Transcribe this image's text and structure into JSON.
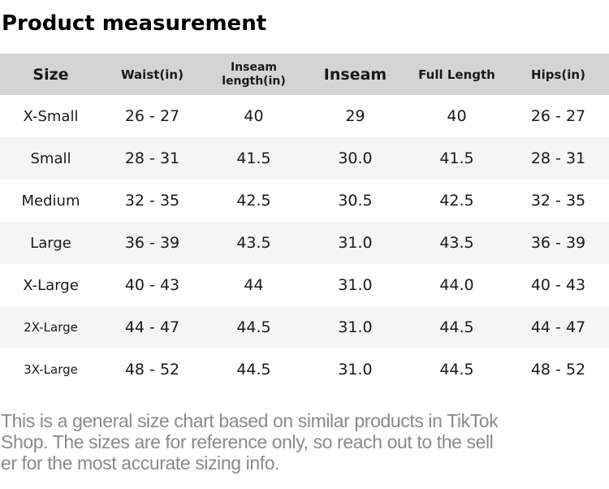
{
  "page": {
    "title": "Product measurement"
  },
  "table": {
    "columns": [
      {
        "label": "Size",
        "emphasis": "large"
      },
      {
        "label": "Waist(in)",
        "emphasis": "small"
      },
      {
        "label": "Inseam\nlength(in)",
        "emphasis": "twoline"
      },
      {
        "label": "Inseam",
        "emphasis": "large"
      },
      {
        "label": "Full Length",
        "emphasis": "small"
      },
      {
        "label": "Hips(in)",
        "emphasis": "small"
      }
    ],
    "rows": [
      {
        "size": "X-Small",
        "small_label": false,
        "values": [
          "26 - 27",
          "40",
          "29",
          "40",
          "26 - 27"
        ]
      },
      {
        "size": "Small",
        "small_label": false,
        "values": [
          "28 - 31",
          "41.5",
          "30.0",
          "41.5",
          "28 - 31"
        ]
      },
      {
        "size": "Medium",
        "small_label": false,
        "values": [
          "32 - 35",
          "42.5",
          "30.5",
          "42.5",
          "32 - 35"
        ]
      },
      {
        "size": "Large",
        "small_label": false,
        "values": [
          "36 - 39",
          "43.5",
          "31.0",
          "43.5",
          "36 - 39"
        ]
      },
      {
        "size": "X-Large",
        "small_label": false,
        "values": [
          "40 - 43",
          "44",
          "31.0",
          "44.0",
          "40 - 43"
        ]
      },
      {
        "size": "2X-Large",
        "small_label": true,
        "values": [
          "44 - 47",
          "44.5",
          "31.0",
          "44.5",
          "44 - 47"
        ]
      },
      {
        "size": "3X-Large",
        "small_label": true,
        "values": [
          "48 - 52",
          "44.5",
          "31.0",
          "44.5",
          "48 - 52"
        ]
      }
    ]
  },
  "footer": {
    "lines": [
      "This is a general size chart based on similar products in TikTok",
      "Shop. The sizes are for reference only, so reach out to the sell",
      "er for the most accurate sizing info."
    ]
  },
  "colors": {
    "header_bg": "#d4d4d4",
    "row_alt_bg": "#f5f5f5",
    "body_text": "#1a1a1a",
    "footer_text": "#8a8a8a"
  }
}
